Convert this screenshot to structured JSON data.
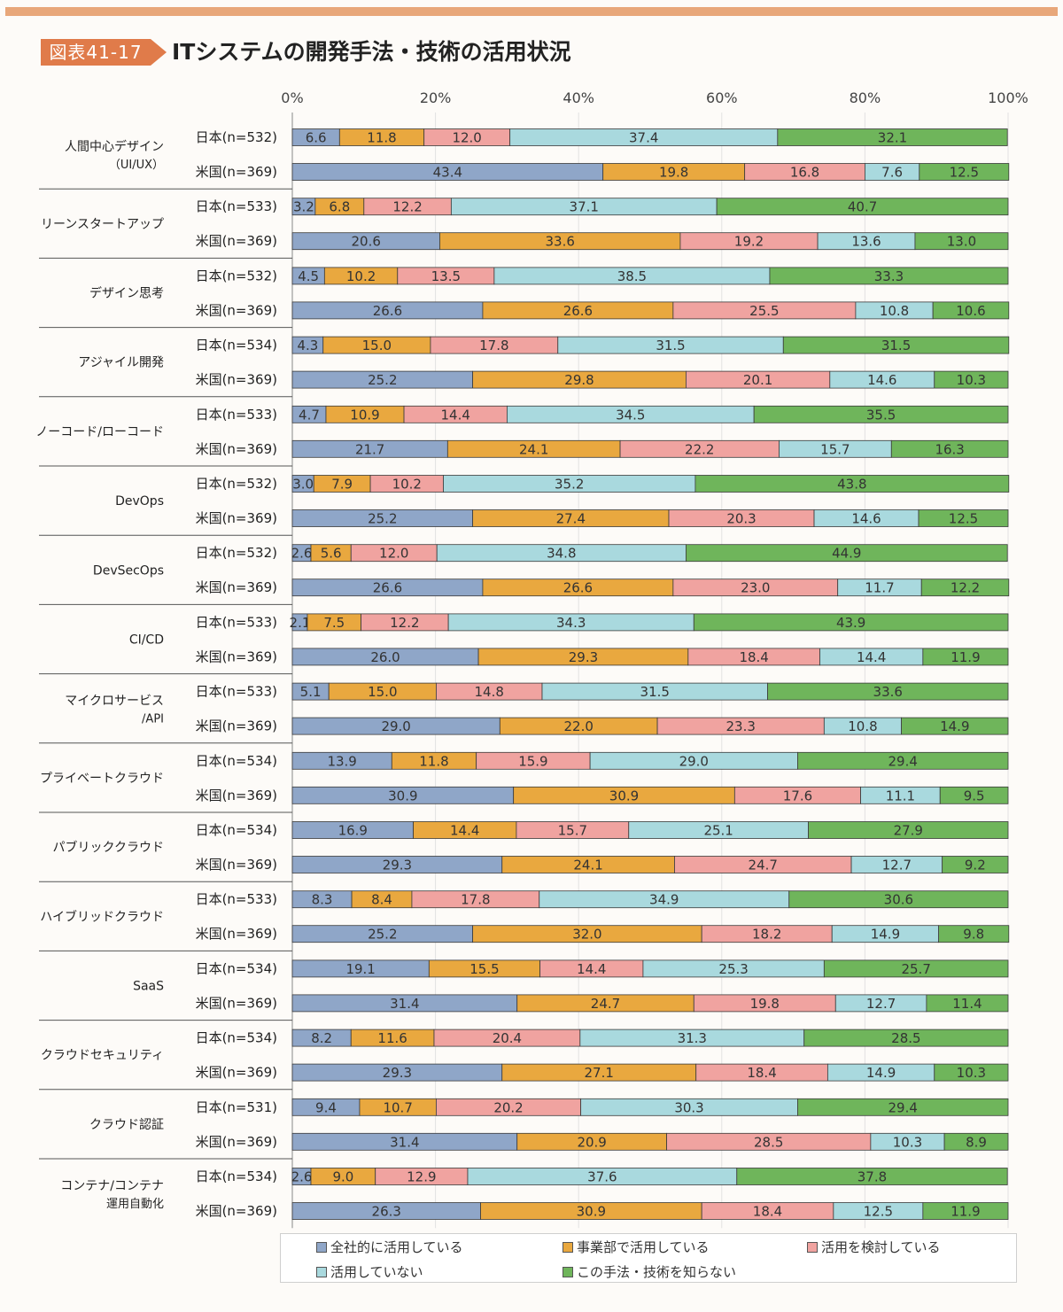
{
  "figure": {
    "label": "図表41-17",
    "title": "ITシステムの開発手法・技術の活用状況"
  },
  "chart_data": {
    "type": "bar",
    "orientation": "horizontal",
    "stacked": true,
    "percent_axis": true,
    "xlim": [
      0,
      100
    ],
    "x_ticks": [
      "0%",
      "20%",
      "40%",
      "60%",
      "80%",
      "100%"
    ],
    "grid": true,
    "legend_position": "bottom",
    "series": [
      {
        "name": "全社的に活用している",
        "color": "#8fa6c8"
      },
      {
        "name": "事業部で活用している",
        "color": "#e9a83f"
      },
      {
        "name": "活用を検討している",
        "color": "#f0a3a0"
      },
      {
        "name": "活用していない",
        "color": "#a9d9de"
      },
      {
        "name": "この手法・技術を知らない",
        "color": "#6fb55b"
      }
    ],
    "groups": [
      {
        "category": "人間中心デザイン",
        "category_sub": "（UI/UX）",
        "rows": [
          {
            "label": "日本(n=532)",
            "values": [
              6.6,
              11.8,
              12.0,
              37.4,
              32.1
            ]
          },
          {
            "label": "米国(n=369)",
            "values": [
              43.4,
              19.8,
              16.8,
              7.6,
              12.5
            ]
          }
        ]
      },
      {
        "category": "リーンスタートアップ",
        "category_sub": "",
        "rows": [
          {
            "label": "日本(n=533)",
            "values": [
              3.2,
              6.8,
              12.2,
              37.1,
              40.7
            ]
          },
          {
            "label": "米国(n=369)",
            "values": [
              20.6,
              33.6,
              19.2,
              13.6,
              13.0
            ]
          }
        ]
      },
      {
        "category": "デザイン思考",
        "category_sub": "",
        "rows": [
          {
            "label": "日本(n=532)",
            "values": [
              4.5,
              10.2,
              13.5,
              38.5,
              33.3
            ]
          },
          {
            "label": "米国(n=369)",
            "values": [
              26.6,
              26.6,
              25.5,
              10.8,
              10.6
            ]
          }
        ]
      },
      {
        "category": "アジャイル開発",
        "category_sub": "",
        "rows": [
          {
            "label": "日本(n=534)",
            "values": [
              4.3,
              15.0,
              17.8,
              31.5,
              31.5
            ]
          },
          {
            "label": "米国(n=369)",
            "values": [
              25.2,
              29.8,
              20.1,
              14.6,
              10.3
            ]
          }
        ]
      },
      {
        "category": "ノーコード/ローコード",
        "category_sub": "",
        "rows": [
          {
            "label": "日本(n=533)",
            "values": [
              4.7,
              10.9,
              14.4,
              34.5,
              35.5
            ]
          },
          {
            "label": "米国(n=369)",
            "values": [
              21.7,
              24.1,
              22.2,
              15.7,
              16.3
            ]
          }
        ]
      },
      {
        "category": "DevOps",
        "category_sub": "",
        "rows": [
          {
            "label": "日本(n=532)",
            "values": [
              3.0,
              7.9,
              10.2,
              35.2,
              43.8
            ]
          },
          {
            "label": "米国(n=369)",
            "values": [
              25.2,
              27.4,
              20.3,
              14.6,
              12.5
            ]
          }
        ]
      },
      {
        "category": "DevSecOps",
        "category_sub": "",
        "rows": [
          {
            "label": "日本(n=532)",
            "values": [
              2.6,
              5.6,
              12.0,
              34.8,
              44.9
            ]
          },
          {
            "label": "米国(n=369)",
            "values": [
              26.6,
              26.6,
              23.0,
              11.7,
              12.2
            ]
          }
        ]
      },
      {
        "category": "CI/CD",
        "category_sub": "",
        "rows": [
          {
            "label": "日本(n=533)",
            "values": [
              2.1,
              7.5,
              12.2,
              34.3,
              43.9
            ]
          },
          {
            "label": "米国(n=369)",
            "values": [
              26.0,
              29.3,
              18.4,
              14.4,
              11.9
            ]
          }
        ]
      },
      {
        "category": "マイクロサービス",
        "category_sub": "/API",
        "rows": [
          {
            "label": "日本(n=533)",
            "values": [
              5.1,
              15.0,
              14.8,
              31.5,
              33.6
            ]
          },
          {
            "label": "米国(n=369)",
            "values": [
              29.0,
              22.0,
              23.3,
              10.8,
              14.9
            ]
          }
        ]
      },
      {
        "category": "プライベートクラウド",
        "category_sub": "",
        "rows": [
          {
            "label": "日本(n=534)",
            "values": [
              13.9,
              11.8,
              15.9,
              29.0,
              29.4
            ]
          },
          {
            "label": "米国(n=369)",
            "values": [
              30.9,
              30.9,
              17.6,
              11.1,
              9.5
            ]
          }
        ]
      },
      {
        "category": "パブリッククラウド",
        "category_sub": "",
        "rows": [
          {
            "label": "日本(n=534)",
            "values": [
              16.9,
              14.4,
              15.7,
              25.1,
              27.9
            ]
          },
          {
            "label": "米国(n=369)",
            "values": [
              29.3,
              24.1,
              24.7,
              12.7,
              9.2
            ]
          }
        ]
      },
      {
        "category": "ハイブリッドクラウド",
        "category_sub": "",
        "rows": [
          {
            "label": "日本(n=533)",
            "values": [
              8.3,
              8.4,
              17.8,
              34.9,
              30.6
            ]
          },
          {
            "label": "米国(n=369)",
            "values": [
              25.2,
              32.0,
              18.2,
              14.9,
              9.8
            ]
          }
        ]
      },
      {
        "category": "SaaS",
        "category_sub": "",
        "rows": [
          {
            "label": "日本(n=534)",
            "values": [
              19.1,
              15.5,
              14.4,
              25.3,
              25.7
            ]
          },
          {
            "label": "米国(n=369)",
            "values": [
              31.4,
              24.7,
              19.8,
              12.7,
              11.4
            ]
          }
        ]
      },
      {
        "category": "クラウドセキュリティ",
        "category_sub": "",
        "rows": [
          {
            "label": "日本(n=534)",
            "values": [
              8.2,
              11.6,
              20.4,
              31.3,
              28.5
            ]
          },
          {
            "label": "米国(n=369)",
            "values": [
              29.3,
              27.1,
              18.4,
              14.9,
              10.3
            ]
          }
        ]
      },
      {
        "category": "クラウド認証",
        "category_sub": "",
        "rows": [
          {
            "label": "日本(n=531)",
            "values": [
              9.4,
              10.7,
              20.2,
              30.3,
              29.4
            ]
          },
          {
            "label": "米国(n=369)",
            "values": [
              31.4,
              20.9,
              28.5,
              10.3,
              8.9
            ]
          }
        ]
      },
      {
        "category": "コンテナ/コンテナ",
        "category_sub": "運用自動化",
        "rows": [
          {
            "label": "日本(n=534)",
            "values": [
              2.6,
              9.0,
              12.9,
              37.6,
              37.8
            ]
          },
          {
            "label": "米国(n=369)",
            "values": [
              26.3,
              30.9,
              18.4,
              12.5,
              11.9
            ]
          }
        ]
      }
    ]
  }
}
